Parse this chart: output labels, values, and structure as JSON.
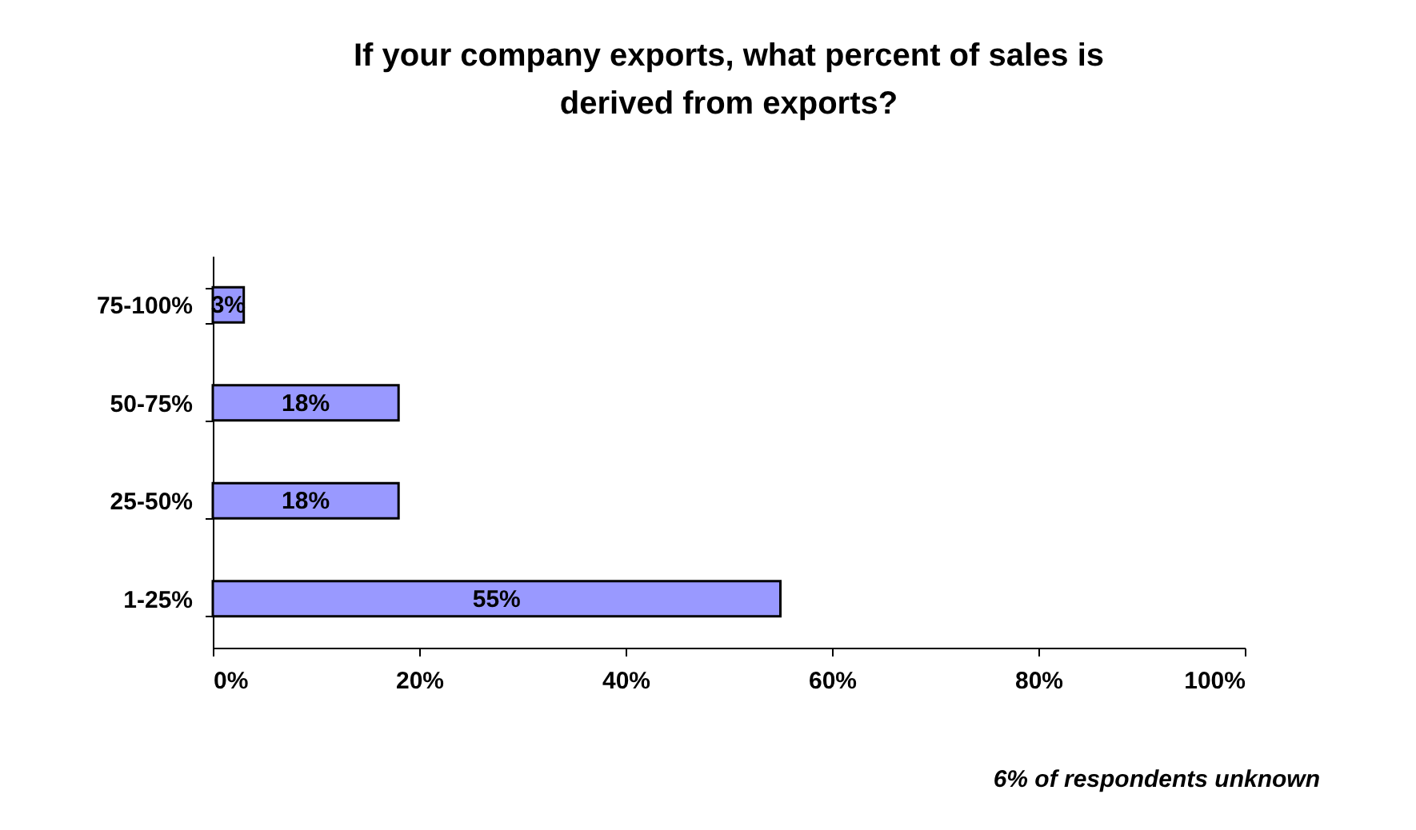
{
  "chart_data": {
    "type": "bar",
    "orientation": "horizontal",
    "title": "If your company exports, what percent of sales is derived from exports?",
    "categories": [
      "75-100%",
      "50-75%",
      "25-50%",
      "1-25%"
    ],
    "values": [
      3,
      18,
      18,
      55
    ],
    "value_labels": [
      "3%",
      "18%",
      "18%",
      "55%"
    ],
    "color": "#9999ff",
    "xlim": [
      0,
      100
    ],
    "xticks": [
      {
        "value": 0,
        "label": "0%"
      },
      {
        "value": 20,
        "label": "20%"
      },
      {
        "value": 40,
        "label": "40%"
      },
      {
        "value": 60,
        "label": "60%"
      },
      {
        "value": 80,
        "label": "80%"
      },
      {
        "value": 100,
        "label": "100%"
      }
    ],
    "grid": false,
    "annotations": [
      "6% of respondents unknown"
    ]
  }
}
